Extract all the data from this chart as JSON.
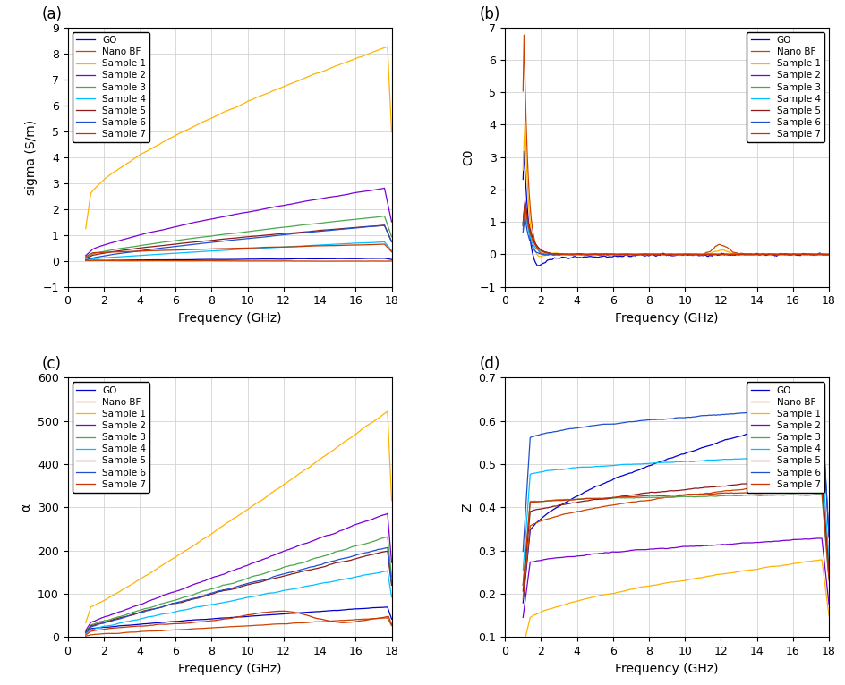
{
  "labels": [
    "GO",
    "Nano BF",
    "Sample 1",
    "Sample 2",
    "Sample 3",
    "Sample 4",
    "Sample 5",
    "Sample 6",
    "Sample 7"
  ],
  "colors": [
    "#0000CD",
    "#CC4400",
    "#FFB300",
    "#7B00D4",
    "#4CA64C",
    "#00BFFF",
    "#8B1A1A",
    "#1E4FCC",
    "#CC3300"
  ],
  "panel_labels": [
    "(a)",
    "(b)",
    "(c)",
    "(d)"
  ],
  "ylabels": [
    "sigma (S/m)",
    "C0",
    "α",
    "Z"
  ],
  "xlabels": [
    "Frequency (GHz)",
    "Frequency (GHz)",
    "Frequency (GHz)",
    "Frequency (GHz)"
  ],
  "yticks_a": [
    -1,
    0,
    1,
    2,
    3,
    4,
    5,
    6,
    7,
    8,
    9
  ],
  "yticks_b": [
    -1,
    0,
    1,
    2,
    3,
    4,
    5,
    6,
    7
  ],
  "yticks_c": [
    0,
    100,
    200,
    300,
    400,
    500,
    600
  ],
  "yticks_d": [
    0.1,
    0.2,
    0.3,
    0.4,
    0.5,
    0.6,
    0.7
  ],
  "xticks": [
    0,
    2,
    4,
    6,
    8,
    10,
    12,
    14,
    16,
    18
  ]
}
